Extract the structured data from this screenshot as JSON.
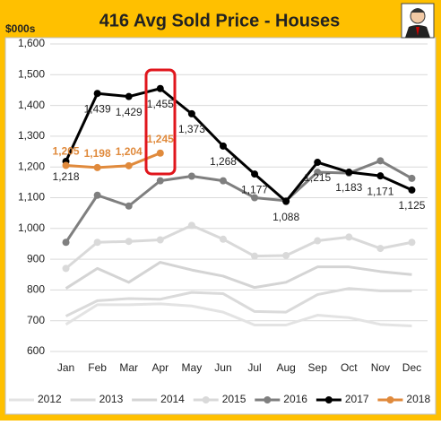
{
  "chart_data": {
    "type": "line",
    "title": "416 Avg Sold Price - Houses",
    "y_label": "$000s",
    "categories": [
      "Jan",
      "Feb",
      "Mar",
      "Apr",
      "May",
      "Jun",
      "Jul",
      "Aug",
      "Sep",
      "Oct",
      "Nov",
      "Dec"
    ],
    "ylim": [
      600,
      1600
    ],
    "yticks": [
      600,
      700,
      800,
      900,
      {
        "value": 1000,
        "label": "1,000"
      },
      {
        "value": 1100,
        "label": "1,100"
      },
      {
        "value": 1200,
        "label": "1,200"
      },
      {
        "value": 1300,
        "label": "1,300"
      },
      {
        "value": 1400,
        "label": "1,400"
      },
      {
        "value": 1500,
        "label": "1,500"
      },
      {
        "value": 1600,
        "label": "1,600"
      }
    ],
    "grid": true,
    "legend": "bottom",
    "series": [
      {
        "name": "2012",
        "color": "#e3e3e3",
        "marker": false,
        "values": [
          688,
          752,
          752,
          755,
          748,
          728,
          686,
          686,
          718,
          710,
          688,
          683
        ]
      },
      {
        "name": "2013",
        "color": "#dadada",
        "marker": false,
        "values": [
          715,
          765,
          772,
          770,
          792,
          788,
          730,
          728,
          785,
          805,
          797,
          797
        ]
      },
      {
        "name": "2014",
        "color": "#d4d4d4",
        "marker": false,
        "values": [
          805,
          870,
          825,
          890,
          865,
          845,
          808,
          825,
          875,
          875,
          860,
          850
        ]
      },
      {
        "name": "2015",
        "color": "#d9d9d9",
        "marker": true,
        "values": [
          870,
          955,
          958,
          963,
          1010,
          965,
          910,
          912,
          960,
          972,
          935,
          955
        ]
      },
      {
        "name": "2016",
        "color": "#7f7f7f",
        "marker": true,
        "values": [
          955,
          1108,
          1073,
          1155,
          1170,
          1155,
          1100,
          1090,
          1183,
          1180,
          1220,
          1163
        ]
      },
      {
        "name": "2017",
        "color": "#000000",
        "marker": true,
        "values": [
          1218,
          1439,
          1429,
          1455,
          1373,
          1268,
          1177,
          1088,
          1215,
          1183,
          1171,
          1125
        ],
        "value_labels": [
          "1,218",
          "1,439",
          "1,429",
          "1,455",
          "1,373",
          "1,268",
          "1,177",
          "1,088",
          "1,215",
          "1,183",
          "1,171",
          "1,125"
        ]
      },
      {
        "name": "2018",
        "color": "#e08a3c",
        "marker": true,
        "values": [
          1205,
          1198,
          1204,
          1245,
          null,
          null,
          null,
          null,
          null,
          null,
          null,
          null
        ],
        "value_labels": [
          "1,205",
          "1,198",
          "1,204",
          "1,245",
          null,
          null,
          null,
          null,
          null,
          null,
          null,
          null
        ]
      }
    ]
  }
}
